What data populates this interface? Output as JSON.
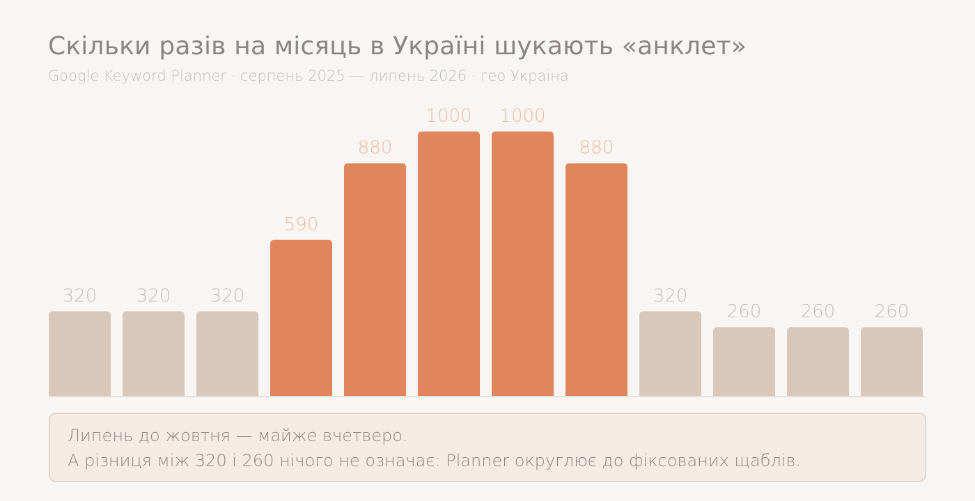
{
  "header": {
    "title": "Скільки разів на місяць в Україні шукають «анклет»",
    "subtitle": "Google Keyword Planner · серпень 2025 — липень 2026 · гео Україна"
  },
  "colors": {
    "background": "#f8f6f4",
    "bar_low": "#d9c8ba",
    "bar_high": "#e0855c",
    "label_low": "#c7bdb6",
    "label_high": "#f0b898",
    "baseline": "#e6e0da"
  },
  "chart_data": {
    "type": "bar",
    "title": "Скільки разів на місяць в Україні шукають «анклет»",
    "xlabel": "",
    "ylabel": "",
    "ylim": [
      0,
      1000
    ],
    "grid": false,
    "values": [
      320,
      320,
      320,
      590,
      880,
      1000,
      1000,
      880,
      320,
      260,
      260,
      260
    ],
    "highlighted": [
      false,
      false,
      false,
      true,
      true,
      true,
      true,
      true,
      false,
      false,
      false,
      false
    ],
    "data_labels": [
      "320",
      "320",
      "320",
      "590",
      "880",
      "1000",
      "1000",
      "880",
      "320",
      "260",
      "260",
      "260"
    ]
  },
  "note": {
    "line1": "Липень до жовтня — майже вчетверо.",
    "line2": "А різниця між 320 і 260 нічого не означає: Planner округлює до фіксованих щаблів."
  }
}
